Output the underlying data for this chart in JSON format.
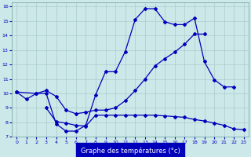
{
  "xlabel": "Graphe des températures (°c)",
  "bg_color": "#cce8e8",
  "line_color": "#0000bb",
  "grid_color": "#aacccc",
  "xlim": [
    -0.5,
    23.5
  ],
  "ylim": [
    7,
    16.3
  ],
  "xticks": [
    0,
    1,
    2,
    3,
    4,
    5,
    6,
    7,
    8,
    9,
    10,
    11,
    12,
    13,
    14,
    15,
    16,
    17,
    18,
    19,
    20,
    21,
    22,
    23
  ],
  "yticks": [
    7,
    8,
    9,
    10,
    11,
    12,
    13,
    14,
    15,
    16
  ],
  "line1_x": [
    0,
    1,
    2,
    3,
    4,
    5,
    6,
    7,
    8,
    9,
    10,
    11,
    12,
    13,
    14,
    15,
    16,
    17,
    18,
    19,
    20,
    21,
    22
  ],
  "line1_y": [
    10.1,
    9.6,
    10.0,
    10.0,
    7.9,
    7.4,
    7.4,
    7.8,
    9.9,
    11.5,
    11.5,
    12.9,
    15.1,
    15.85,
    15.85,
    14.95,
    14.75,
    14.75,
    15.2,
    12.2,
    10.95,
    10.45,
    10.45
  ],
  "line2_x": [
    0,
    2,
    3,
    4,
    5,
    6,
    7,
    8,
    9,
    10,
    11,
    12,
    13,
    14,
    15,
    16,
    17,
    18,
    19
  ],
  "line2_y": [
    10.1,
    10.0,
    10.2,
    9.8,
    8.85,
    8.6,
    8.7,
    8.85,
    8.85,
    9.0,
    9.5,
    10.2,
    11.0,
    11.9,
    12.4,
    12.85,
    13.4,
    14.1,
    14.1
  ],
  "line3_x": [
    3,
    4,
    5,
    6,
    7,
    8,
    9,
    10,
    11,
    12,
    13,
    14,
    15,
    16,
    17,
    18,
    19,
    20,
    21,
    22,
    23
  ],
  "line3_y": [
    9.0,
    8.05,
    7.95,
    7.8,
    7.75,
    8.5,
    8.5,
    8.5,
    8.5,
    8.5,
    8.5,
    8.5,
    8.45,
    8.4,
    8.35,
    8.2,
    8.1,
    7.95,
    7.8,
    7.55,
    7.5
  ]
}
